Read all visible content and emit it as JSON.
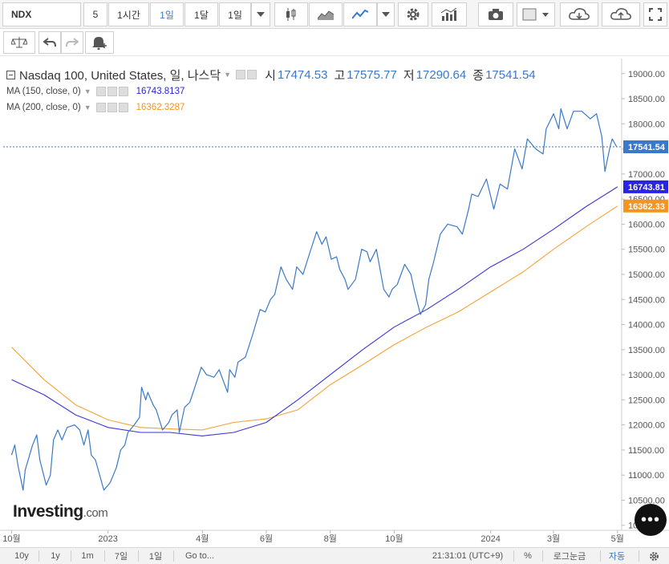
{
  "toolbar": {
    "symbol": "NDX",
    "intervals": [
      "5",
      "1시간",
      "1일",
      "1달",
      "1일"
    ],
    "active_interval_index": 2
  },
  "legend": {
    "title": "Nasdaq 100, United States, 일, 나스닥",
    "open_label": "시",
    "open": "17474.53",
    "high_label": "고",
    "high": "17575.77",
    "low_label": "저",
    "low": "17290.64",
    "close_label": "종",
    "close": "17541.54",
    "ma150_label": "MA (150, close, 0)",
    "ma150_value": "16743.8137",
    "ma200_label": "MA (200, close, 0)",
    "ma200_value": "16362.3287"
  },
  "watermark": {
    "brand": "Investing",
    "suffix": ".com"
  },
  "bottombar": {
    "ranges": [
      "10y",
      "1y",
      "1m",
      "7일",
      "1일"
    ],
    "goto": "Go to...",
    "time": "21:31:01 (UTC+9)",
    "percent": "%",
    "log": "로그눈금",
    "auto": "자동"
  },
  "colors": {
    "price": "#3a79c9",
    "ma150": "#3a35d4",
    "ma200": "#f5a33a",
    "badge_price": "#3a79c9",
    "badge_ma150": "#2a23e0",
    "badge_ma200": "#f7941d"
  },
  "chart_data": {
    "type": "line",
    "y_axis": {
      "ticks": [
        "19000.00",
        "18500.00",
        "18000.00",
        "17500.00",
        "17000.00",
        "16500.00",
        "16000.00",
        "15500.00",
        "15000.00",
        "14500.00",
        "14000.00",
        "13500.00",
        "13000.00",
        "12500.00",
        "12000.00",
        "11500.00",
        "11000.00",
        "10500.00",
        "10000.00"
      ],
      "tick_values": [
        19000,
        18500,
        18000,
        17500,
        17000,
        16500,
        16000,
        15500,
        15000,
        14500,
        14000,
        13500,
        13000,
        12500,
        12000,
        11500,
        11000,
        10500,
        10000
      ],
      "range": [
        9900,
        19300
      ]
    },
    "x_axis": {
      "labels": [
        "10월",
        "2023",
        "4월",
        "6월",
        "8월",
        "10월",
        "2024",
        "3월",
        "5월"
      ],
      "label_dates": [
        "2022-10-01",
        "2023-01-01",
        "2023-04-01",
        "2023-06-01",
        "2023-08-01",
        "2023-10-01",
        "2024-01-01",
        "2024-03-01",
        "2024-05-01"
      ],
      "range": [
        "2022-10-01",
        "2024-05-01"
      ]
    },
    "last_price": {
      "value": 17541.54,
      "label": "17541.54"
    },
    "series": [
      {
        "name": "Nasdaq 100",
        "color": "#3a79c9",
        "points": [
          [
            "2022-10-01",
            11400
          ],
          [
            "2022-10-04",
            11600
          ],
          [
            "2022-10-07",
            11200
          ],
          [
            "2022-10-12",
            10700
          ],
          [
            "2022-10-14",
            11100
          ],
          [
            "2022-10-21",
            11600
          ],
          [
            "2022-10-25",
            11800
          ],
          [
            "2022-10-28",
            11300
          ],
          [
            "2022-11-03",
            10800
          ],
          [
            "2022-11-07",
            11000
          ],
          [
            "2022-11-10",
            11700
          ],
          [
            "2022-11-14",
            11900
          ],
          [
            "2022-11-18",
            11700
          ],
          [
            "2022-11-23",
            11950
          ],
          [
            "2022-11-30",
            12000
          ],
          [
            "2022-12-05",
            11900
          ],
          [
            "2022-12-09",
            11600
          ],
          [
            "2022-12-13",
            11900
          ],
          [
            "2022-12-16",
            11400
          ],
          [
            "2022-12-20",
            11300
          ],
          [
            "2022-12-28",
            10700
          ],
          [
            "2023-01-03",
            10850
          ],
          [
            "2023-01-06",
            11000
          ],
          [
            "2023-01-09",
            11150
          ],
          [
            "2023-01-13",
            11500
          ],
          [
            "2023-01-17",
            11600
          ],
          [
            "2023-01-20",
            11850
          ],
          [
            "2023-01-26",
            12000
          ],
          [
            "2023-01-31",
            12150
          ],
          [
            "2023-02-02",
            12750
          ],
          [
            "2023-02-06",
            12500
          ],
          [
            "2023-02-08",
            12650
          ],
          [
            "2023-02-13",
            12400
          ],
          [
            "2023-02-16",
            12300
          ],
          [
            "2023-02-22",
            11900
          ],
          [
            "2023-02-28",
            12050
          ],
          [
            "2023-03-03",
            12200
          ],
          [
            "2023-03-08",
            12300
          ],
          [
            "2023-03-10",
            11850
          ],
          [
            "2023-03-15",
            12350
          ],
          [
            "2023-03-20",
            12450
          ],
          [
            "2023-03-24",
            12700
          ],
          [
            "2023-03-31",
            13150
          ],
          [
            "2023-04-05",
            13000
          ],
          [
            "2023-04-12",
            12950
          ],
          [
            "2023-04-17",
            13100
          ],
          [
            "2023-04-25",
            12650
          ],
          [
            "2023-04-27",
            13100
          ],
          [
            "2023-05-02",
            12950
          ],
          [
            "2023-05-05",
            13250
          ],
          [
            "2023-05-12",
            13350
          ],
          [
            "2023-05-19",
            13800
          ],
          [
            "2023-05-26",
            14300
          ],
          [
            "2023-05-31",
            14250
          ],
          [
            "2023-06-05",
            14500
          ],
          [
            "2023-06-09",
            14600
          ],
          [
            "2023-06-15",
            15150
          ],
          [
            "2023-06-20",
            14900
          ],
          [
            "2023-06-26",
            14700
          ],
          [
            "2023-06-30",
            15150
          ],
          [
            "2023-07-06",
            15000
          ],
          [
            "2023-07-12",
            15400
          ],
          [
            "2023-07-19",
            15850
          ],
          [
            "2023-07-24",
            15600
          ],
          [
            "2023-07-28",
            15750
          ],
          [
            "2023-08-02",
            15300
          ],
          [
            "2023-08-07",
            15350
          ],
          [
            "2023-08-10",
            15100
          ],
          [
            "2023-08-15",
            14900
          ],
          [
            "2023-08-18",
            14700
          ],
          [
            "2023-08-25",
            14900
          ],
          [
            "2023-08-31",
            15500
          ],
          [
            "2023-09-05",
            15450
          ],
          [
            "2023-09-08",
            15250
          ],
          [
            "2023-09-14",
            15500
          ],
          [
            "2023-09-21",
            14700
          ],
          [
            "2023-09-26",
            14550
          ],
          [
            "2023-09-29",
            14700
          ],
          [
            "2023-10-04",
            14800
          ],
          [
            "2023-10-11",
            15200
          ],
          [
            "2023-10-17",
            15000
          ],
          [
            "2023-10-20",
            14700
          ],
          [
            "2023-10-26",
            14200
          ],
          [
            "2023-10-31",
            14400
          ],
          [
            "2023-11-03",
            14900
          ],
          [
            "2023-11-07",
            15200
          ],
          [
            "2023-11-14",
            15800
          ],
          [
            "2023-11-21",
            16000
          ],
          [
            "2023-11-30",
            15950
          ],
          [
            "2023-12-05",
            15800
          ],
          [
            "2023-12-11",
            16300
          ],
          [
            "2023-12-14",
            16600
          ],
          [
            "2023-12-20",
            16550
          ],
          [
            "2023-12-28",
            16900
          ],
          [
            "2024-01-04",
            16300
          ],
          [
            "2024-01-10",
            16800
          ],
          [
            "2024-01-17",
            16700
          ],
          [
            "2024-01-24",
            17500
          ],
          [
            "2024-01-31",
            17100
          ],
          [
            "2024-02-05",
            17700
          ],
          [
            "2024-02-13",
            17500
          ],
          [
            "2024-02-20",
            17400
          ],
          [
            "2024-02-23",
            17900
          ],
          [
            "2024-03-01",
            18200
          ],
          [
            "2024-03-06",
            17900
          ],
          [
            "2024-03-08",
            18300
          ],
          [
            "2024-03-14",
            17900
          ],
          [
            "2024-03-20",
            18250
          ],
          [
            "2024-03-28",
            18250
          ],
          [
            "2024-04-05",
            18100
          ],
          [
            "2024-04-11",
            18200
          ],
          [
            "2024-04-16",
            17750
          ],
          [
            "2024-04-19",
            17050
          ],
          [
            "2024-04-24",
            17550
          ],
          [
            "2024-04-26",
            17700
          ],
          [
            "2024-04-30",
            17550
          ]
        ]
      },
      {
        "name": "MA (150, close, 0)",
        "color": "#3a35d4",
        "points": [
          [
            "2022-10-01",
            12900
          ],
          [
            "2022-11-01",
            12600
          ],
          [
            "2022-12-01",
            12200
          ],
          [
            "2023-01-01",
            11950
          ],
          [
            "2023-02-01",
            11850
          ],
          [
            "2023-03-01",
            11850
          ],
          [
            "2023-04-01",
            11780
          ],
          [
            "2023-05-01",
            11850
          ],
          [
            "2023-06-01",
            12050
          ],
          [
            "2023-07-01",
            12500
          ],
          [
            "2023-08-01",
            13000
          ],
          [
            "2023-09-01",
            13500
          ],
          [
            "2023-10-01",
            13950
          ],
          [
            "2023-11-01",
            14300
          ],
          [
            "2023-12-01",
            14700
          ],
          [
            "2024-01-01",
            15150
          ],
          [
            "2024-02-01",
            15500
          ],
          [
            "2024-03-01",
            15900
          ],
          [
            "2024-04-01",
            16350
          ],
          [
            "2024-05-01",
            16744
          ]
        ]
      },
      {
        "name": "MA (200, close, 0)",
        "color": "#f5a33a",
        "points": [
          [
            "2022-10-01",
            13550
          ],
          [
            "2022-11-01",
            12900
          ],
          [
            "2022-12-01",
            12400
          ],
          [
            "2023-01-01",
            12100
          ],
          [
            "2023-02-01",
            11950
          ],
          [
            "2023-03-01",
            11920
          ],
          [
            "2023-04-01",
            11900
          ],
          [
            "2023-05-01",
            12050
          ],
          [
            "2023-06-01",
            12120
          ],
          [
            "2023-07-01",
            12300
          ],
          [
            "2023-08-01",
            12800
          ],
          [
            "2023-09-01",
            13200
          ],
          [
            "2023-10-01",
            13600
          ],
          [
            "2023-11-01",
            13950
          ],
          [
            "2023-12-01",
            14250
          ],
          [
            "2024-01-01",
            14650
          ],
          [
            "2024-02-01",
            15050
          ],
          [
            "2024-03-01",
            15500
          ],
          [
            "2024-04-01",
            15950
          ],
          [
            "2024-05-01",
            16362
          ]
        ]
      }
    ],
    "grid": false,
    "legend_position": "top-left"
  }
}
